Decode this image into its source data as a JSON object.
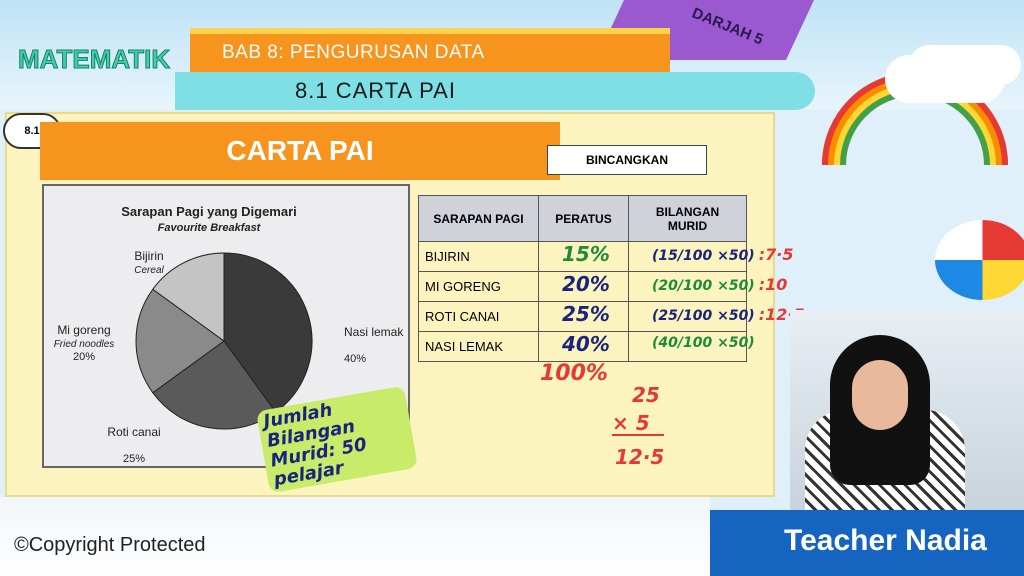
{
  "header": {
    "subject": "MATEMATIK",
    "chapter": "BAB 8: PENGURUSAN DATA",
    "section": "8.1 CARTA PAI",
    "grade": "DARJAH 5"
  },
  "slide": {
    "badge": "8.1",
    "title": "CARTA PAI",
    "discuss_button": "BINCANGKAN"
  },
  "chart_data": {
    "type": "pie",
    "title": "Sarapan Pagi yang Digemari",
    "subtitle": "Favourite Breakfast",
    "slices": [
      {
        "label": "Nasi lemak",
        "sublabel": "",
        "value": 40,
        "value_label": "40%",
        "color": "#3a3a3a"
      },
      {
        "label": "Roti canai",
        "sublabel": "",
        "value": 25,
        "value_label": "25%",
        "color": "#5a5a5a"
      },
      {
        "label": "Mi goreng",
        "sublabel": "Fried noodles",
        "value": 20,
        "value_label": "20%",
        "color": "#8a8a8a"
      },
      {
        "label": "Bijirin",
        "sublabel": "Cereal",
        "value": 15,
        "value_label": "",
        "color": "#c4c4c4"
      }
    ]
  },
  "table": {
    "headers": [
      "SARAPAN PAGI",
      "PERATUS",
      "BILANGAN MURID"
    ],
    "rows": [
      [
        "BIJIRIN",
        "",
        ""
      ],
      [
        "MI GORENG",
        "",
        ""
      ],
      [
        "ROTI CANAI",
        "",
        ""
      ],
      [
        "NASI LEMAK",
        "",
        ""
      ]
    ]
  },
  "annotations": {
    "percents": [
      {
        "text": "15%",
        "color": "#1e8b3a"
      },
      {
        "text": "20%",
        "color": "#1a237e"
      },
      {
        "text": "25%",
        "color": "#1a237e"
      },
      {
        "text": "40%",
        "color": "#1a237e"
      }
    ],
    "calcs": [
      {
        "text": "(15/100 ×50)",
        "color": "#1a237e",
        "result": ":7·5"
      },
      {
        "text": "(20/100 ×50)",
        "color": "#1e8b3a",
        "result": ":10"
      },
      {
        "text": "(25/100 ×50)",
        "color": "#1a237e",
        "result": ":12·5"
      },
      {
        "text": "(40/100 ×50)",
        "color": "#1e8b3a",
        "result": ""
      }
    ],
    "total": "100%",
    "mult_top": "25",
    "mult_mid": "× 5",
    "mult_res": "12·5",
    "note": "Jumlah Bilangan Murid: 50 pelajar"
  },
  "footer": {
    "copyright": "©Copyright Protected",
    "presenter": "Teacher Nadia"
  }
}
